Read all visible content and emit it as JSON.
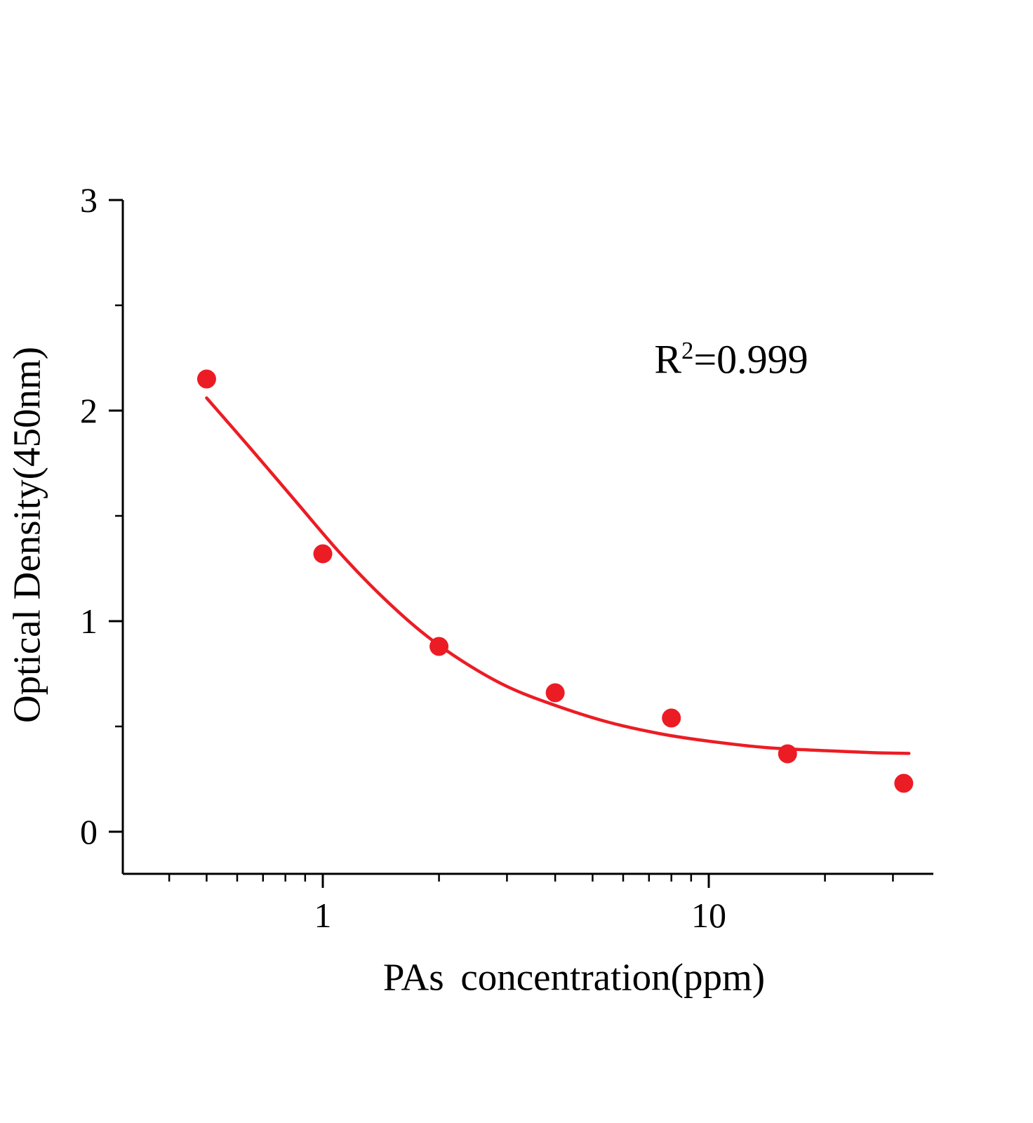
{
  "page": {
    "background": "#ffffff",
    "axis_color": "#000000"
  },
  "chart_data": {
    "type": "scatter",
    "title": "",
    "xlabel": "PAs concentration(ppm)",
    "ylabel": "Optical Density(450nm)",
    "x_scale": "log",
    "xlim": [
      0.3,
      38
    ],
    "ylim": [
      -0.2,
      3
    ],
    "grid": false,
    "legend": null,
    "x_major_ticks": [
      1,
      10
    ],
    "x_major_tick_labels": [
      "1",
      "10"
    ],
    "x_minor_ticks": [
      0.4,
      0.5,
      0.6,
      0.7,
      0.8,
      0.9,
      2,
      3,
      4,
      5,
      6,
      7,
      8,
      9,
      20,
      30
    ],
    "y_major_ticks": [
      0,
      1,
      2,
      3
    ],
    "y_major_tick_labels": [
      "0",
      "1",
      "2",
      "3"
    ],
    "y_minor_ticks": [
      0.5,
      1.5,
      2.5
    ],
    "series": [
      {
        "name": "standard-points",
        "type": "scatter",
        "color": "#ec1c24",
        "marker": "circle",
        "points": [
          {
            "x": 0.5,
            "y": 2.15
          },
          {
            "x": 1,
            "y": 1.32
          },
          {
            "x": 2,
            "y": 0.88
          },
          {
            "x": 4,
            "y": 0.66
          },
          {
            "x": 8,
            "y": 0.54
          },
          {
            "x": 16,
            "y": 0.37
          },
          {
            "x": 32,
            "y": 0.23
          }
        ]
      },
      {
        "name": "fit-curve",
        "type": "line",
        "color": "#ec1c24",
        "points": [
          {
            "x": 0.5,
            "y": 2.06
          },
          {
            "x": 0.65,
            "y": 1.82
          },
          {
            "x": 0.85,
            "y": 1.57
          },
          {
            "x": 1.1,
            "y": 1.33
          },
          {
            "x": 1.4,
            "y": 1.13
          },
          {
            "x": 1.8,
            "y": 0.95
          },
          {
            "x": 2.3,
            "y": 0.81
          },
          {
            "x": 3.0,
            "y": 0.69
          },
          {
            "x": 4.0,
            "y": 0.6
          },
          {
            "x": 5.5,
            "y": 0.52
          },
          {
            "x": 7.5,
            "y": 0.465
          },
          {
            "x": 10,
            "y": 0.43
          },
          {
            "x": 14,
            "y": 0.4
          },
          {
            "x": 20,
            "y": 0.385
          },
          {
            "x": 27,
            "y": 0.375
          },
          {
            "x": 33,
            "y": 0.372
          }
        ]
      }
    ],
    "annotation": {
      "base": "R",
      "sup": "2",
      "rest": "=0.999",
      "r_squared": 0.999
    }
  }
}
